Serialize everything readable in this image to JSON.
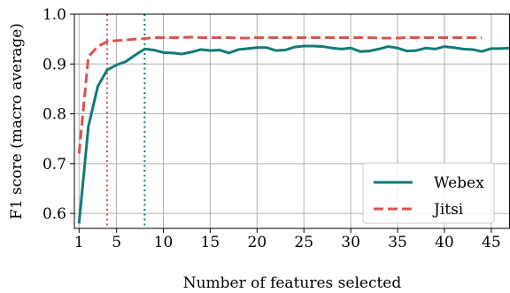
{
  "chart_data": {
    "type": "line",
    "xlabel": "Number of features selected",
    "ylabel": "F1 score (macro average)",
    "xlim": [
      0.5,
      47
    ],
    "ylim": [
      0.57,
      1.0
    ],
    "xticks": [
      1,
      5,
      10,
      15,
      20,
      25,
      30,
      35,
      40,
      45
    ],
    "yticks": [
      0.6,
      0.7,
      0.8,
      0.9,
      1.0
    ],
    "ytick_labels": [
      "0.6",
      "0.7",
      "0.8",
      "0.9",
      "1.0"
    ],
    "grid": true,
    "legend_position": "bottom-right",
    "vlines": [
      {
        "series": "Jitsi",
        "x": 4,
        "color": "#d9534f"
      },
      {
        "series": "Webex",
        "x": 8,
        "color": "#127a78"
      }
    ],
    "series": [
      {
        "name": "Webex",
        "color": "#127a78",
        "style": "solid",
        "x": [
          1,
          2,
          3,
          4,
          5,
          6,
          7,
          8,
          9,
          10,
          11,
          12,
          13,
          14,
          15,
          16,
          17,
          18,
          19,
          20,
          21,
          22,
          23,
          24,
          25,
          26,
          27,
          28,
          29,
          30,
          31,
          32,
          33,
          34,
          35,
          36,
          37,
          38,
          39,
          40,
          41,
          42,
          43,
          44,
          45,
          46,
          47
        ],
        "values": [
          0.58,
          0.775,
          0.855,
          0.888,
          0.898,
          0.905,
          0.918,
          0.93,
          0.928,
          0.923,
          0.922,
          0.92,
          0.924,
          0.929,
          0.927,
          0.928,
          0.922,
          0.929,
          0.931,
          0.933,
          0.933,
          0.927,
          0.928,
          0.934,
          0.936,
          0.936,
          0.935,
          0.932,
          0.93,
          0.932,
          0.925,
          0.926,
          0.93,
          0.935,
          0.932,
          0.926,
          0.927,
          0.932,
          0.93,
          0.935,
          0.933,
          0.93,
          0.929,
          0.925,
          0.931,
          0.931,
          0.932
        ]
      },
      {
        "name": "Jitsi",
        "color": "#d9534f",
        "style": "dashed",
        "x": [
          1,
          2,
          3,
          4,
          5,
          6,
          7,
          8,
          9,
          10,
          11,
          12,
          13,
          14,
          15,
          16,
          17,
          18,
          19,
          20,
          21,
          22,
          23,
          24,
          25,
          26,
          27,
          28,
          29,
          30,
          31,
          32,
          33,
          34,
          35,
          36,
          37,
          38,
          39,
          40,
          41,
          42,
          43,
          44
        ],
        "values": [
          0.72,
          0.915,
          0.935,
          0.945,
          0.947,
          0.948,
          0.95,
          0.951,
          0.953,
          0.953,
          0.953,
          0.953,
          0.954,
          0.953,
          0.953,
          0.953,
          0.953,
          0.952,
          0.952,
          0.953,
          0.953,
          0.953,
          0.953,
          0.953,
          0.953,
          0.953,
          0.953,
          0.953,
          0.953,
          0.953,
          0.953,
          0.953,
          0.952,
          0.952,
          0.952,
          0.953,
          0.953,
          0.953,
          0.953,
          0.953,
          0.953,
          0.953,
          0.953,
          0.953
        ]
      }
    ]
  }
}
